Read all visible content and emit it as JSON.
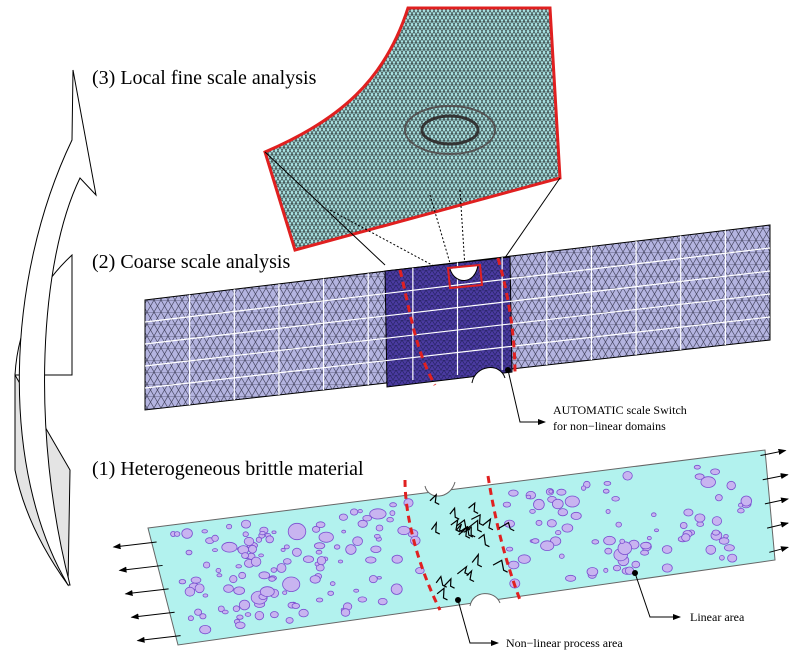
{
  "labels": {
    "step3": "(3) Local fine scale analysis",
    "step2": "(2) Coarse scale analysis",
    "step1": "(1) Heterogeneous brittle material",
    "switch": [
      "AUTOMATIC scale Switch",
      "for non−linear domains"
    ],
    "linear": "Linear area",
    "nonlinear": "Non−linear process area"
  }
}
